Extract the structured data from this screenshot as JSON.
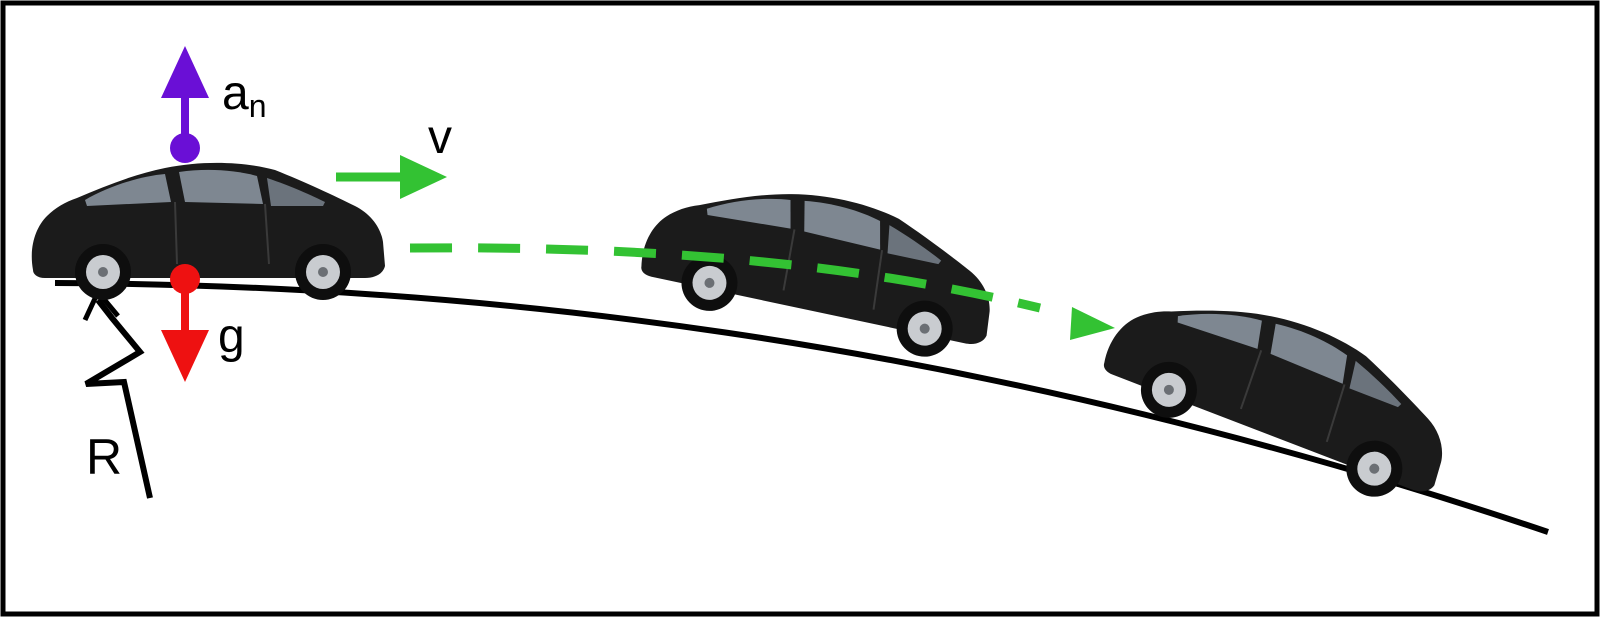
{
  "labels": {
    "normal_acceleration": "a",
    "normal_acceleration_subscript": "n",
    "velocity": "v",
    "gravity": "g",
    "radius": "R"
  },
  "colors": {
    "frame": "#000000",
    "road": "#000000",
    "acceleration_arrow": "#6a0fd6",
    "gravity_arrow": "#ee1111",
    "velocity_arrow": "#33c233",
    "trajectory": "#33c233",
    "car_body": "#1b1b1b",
    "car_window": "#7e8791",
    "wheel_rim": "#c9ccd0"
  },
  "icons": [
    "car-icon",
    "car-icon",
    "car-icon"
  ]
}
